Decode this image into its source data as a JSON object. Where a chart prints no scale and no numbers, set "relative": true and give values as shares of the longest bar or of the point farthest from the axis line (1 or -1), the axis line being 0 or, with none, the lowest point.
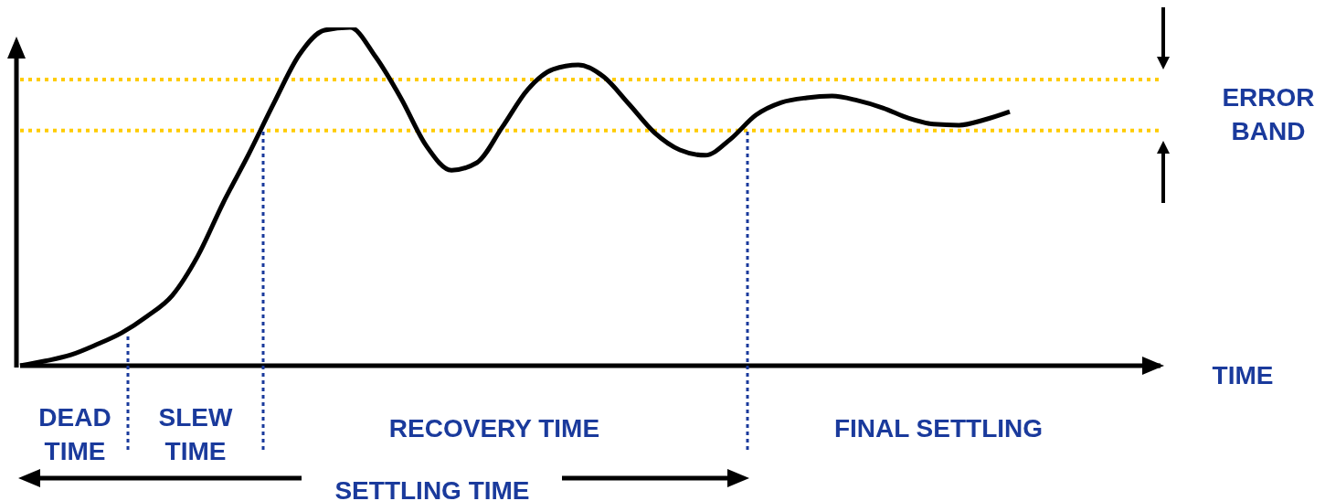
{
  "chart_data": {
    "type": "line",
    "relative": true,
    "marker": "none",
    "line_style": "solid",
    "color": "#000000",
    "categories": [
      null,
      null,
      null,
      null,
      null,
      null,
      null,
      null,
      null,
      null,
      null,
      null,
      null,
      null,
      null,
      null,
      null,
      null,
      null,
      null,
      null,
      null,
      null,
      null,
      null,
      null,
      null,
      null,
      null,
      null,
      null,
      null,
      null,
      null,
      null,
      null,
      null,
      null,
      null,
      null
    ],
    "values": [
      0,
      0.014,
      0.032,
      0.062,
      0.097,
      0.146,
      0.208,
      0.324,
      0.481,
      0.624,
      0.776,
      0.919,
      0.992,
      1,
      0.914,
      0.792,
      0.651,
      0.578,
      0.6,
      0.705,
      0.816,
      0.876,
      0.889,
      0.854,
      0.773,
      0.689,
      0.638,
      0.622,
      0.67,
      0.741,
      0.778,
      0.792,
      0.797,
      0.784,
      0.762,
      0.732,
      0.714,
      0.711,
      0.727,
      0.751
    ],
    "ref_lines": [
      {
        "axis": "y",
        "value": 0.846,
        "color": "#ffcc00",
        "line_style": "dotted"
      },
      {
        "axis": "y",
        "value": 0.695,
        "color": "#ffcc00",
        "line_style": "dotted",
        "label": "ERROR BAND"
      }
    ],
    "annotations": [
      "DEAD TIME",
      "SLEW TIME",
      "RECOVERY TIME",
      "FINAL SETTLING",
      "SETTLING TIME",
      "TIME"
    ]
  }
}
